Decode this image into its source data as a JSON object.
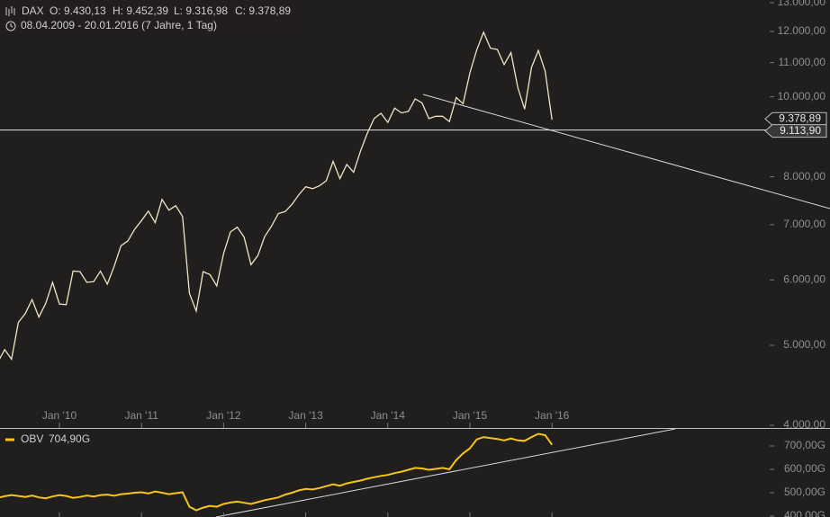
{
  "header": {
    "symbol": "DAX",
    "open": "O: 9.430,13",
    "high": "H: 9.452,39",
    "low": "L: 9.316,98",
    "close": "C: 9.378,89",
    "range": "08.04.2009 - 20.01.2016 (7 Jahre, 1 Tag)"
  },
  "chart_data": [
    {
      "type": "line",
      "log_scale": true,
      "categories": [
        null,
        null,
        null,
        null,
        null,
        null,
        null,
        null,
        null,
        "Jan '10",
        null,
        null,
        null,
        null,
        null,
        null,
        null,
        null,
        null,
        null,
        null,
        "Jan '11",
        null,
        null,
        null,
        null,
        null,
        null,
        null,
        null,
        null,
        null,
        null,
        "Jan '12",
        null,
        null,
        null,
        null,
        null,
        null,
        null,
        null,
        null,
        null,
        null,
        "Jan '13",
        null,
        null,
        null,
        null,
        null,
        null,
        null,
        null,
        null,
        null,
        null,
        "Jan '14",
        null,
        null,
        null,
        null,
        null,
        null,
        null,
        null,
        null,
        null,
        null,
        "Jan '15",
        null,
        null,
        null,
        null,
        null,
        null,
        null,
        null,
        null,
        null,
        null,
        "Jan '16"
      ],
      "series": [
        {
          "name": "DAX",
          "color": "#efe4c6",
          "values": [
            4770,
            4940,
            4810,
            5330,
            5460,
            5680,
            5410,
            5620,
            5960,
            5610,
            5600,
            6150,
            6140,
            5960,
            5970,
            6150,
            5930,
            6230,
            6600,
            6690,
            6910,
            7080,
            7270,
            7040,
            7510,
            7290,
            7380,
            7160,
            5780,
            5500,
            6140,
            6090,
            5900,
            6460,
            6860,
            6950,
            6760,
            6260,
            6420,
            6770,
            6970,
            7220,
            7260,
            7410,
            7610,
            7780,
            7740,
            7800,
            7910,
            8350,
            7960,
            8280,
            8100,
            8590,
            9030,
            9410,
            9550,
            9310,
            9690,
            9560,
            9600,
            9940,
            9830,
            9410,
            9470,
            9470,
            9330,
            9980,
            9810,
            10690,
            11400,
            11970,
            11450,
            11410,
            10940,
            11310,
            10260,
            9660,
            10850,
            11380,
            10740,
            9378.89
          ]
        }
      ],
      "ylim": [
        4000,
        13000
      ],
      "yticks": [
        {
          "value": 4000,
          "label": "4.000,00"
        },
        {
          "value": 5000,
          "label": "5.000,00"
        },
        {
          "value": 6000,
          "label": "6.000,00"
        },
        {
          "value": 7000,
          "label": "7.000,00"
        },
        {
          "value": 8000,
          "label": "8.000,00"
        },
        {
          "value": 10000,
          "label": "10.000,00"
        },
        {
          "value": 11000,
          "label": "11.000,00"
        },
        {
          "value": 12000,
          "label": "12.000,00"
        },
        {
          "value": 13000,
          "label": "13.000,00"
        }
      ],
      "price_tags": [
        {
          "value": 9378.89,
          "label": "9.378,89"
        },
        {
          "value": 9113.9,
          "label": "9.113,90"
        }
      ]
    },
    {
      "type": "line",
      "series": [
        {
          "name": "OBV",
          "color": "#f5c518",
          "values": [
            478,
            485,
            490,
            486,
            482,
            488,
            480,
            476,
            484,
            490,
            486,
            478,
            482,
            488,
            484,
            490,
            492,
            487,
            494,
            496,
            500,
            502,
            497,
            505,
            500,
            494,
            498,
            502,
            440,
            425,
            436,
            444,
            440,
            452,
            458,
            462,
            457,
            452,
            460,
            468,
            474,
            480,
            492,
            500,
            510,
            516,
            514,
            520,
            528,
            536,
            530,
            540,
            546,
            552,
            560,
            566,
            572,
            576,
            584,
            590,
            598,
            606,
            604,
            598,
            602,
            606,
            600,
            640,
            668,
            690,
            728,
            738,
            734,
            730,
            724,
            732,
            724,
            722,
            738,
            752,
            746,
            704.9
          ]
        }
      ],
      "legend_value": {
        "value": 704.9,
        "label": "704,90G"
      },
      "ylim": [
        390,
        775
      ],
      "yticks": [
        {
          "value": 400,
          "label": "400,00G"
        },
        {
          "value": 500,
          "label": "500,00G"
        },
        {
          "value": 600,
          "label": "600,00G"
        },
        {
          "value": 700,
          "label": "700,00G"
        }
      ]
    }
  ]
}
